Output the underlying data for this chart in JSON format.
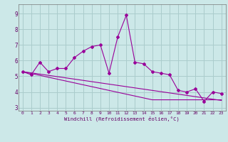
{
  "xlabel": "Windchill (Refroidissement éolien,°C)",
  "x_values": [
    0,
    1,
    2,
    3,
    4,
    5,
    6,
    7,
    8,
    9,
    10,
    11,
    12,
    13,
    14,
    15,
    16,
    17,
    18,
    19,
    20,
    21,
    22,
    23
  ],
  "y_main": [
    5.3,
    5.1,
    5.9,
    5.3,
    5.5,
    5.5,
    6.2,
    6.6,
    6.9,
    7.0,
    5.2,
    7.5,
    8.9,
    5.9,
    5.8,
    5.3,
    5.2,
    5.1,
    4.1,
    4.0,
    4.2,
    3.4,
    4.0,
    3.9
  ],
  "y_line1": [
    5.3,
    5.22,
    5.14,
    5.06,
    4.98,
    4.9,
    4.82,
    4.74,
    4.66,
    4.58,
    4.5,
    4.42,
    4.34,
    4.26,
    4.18,
    4.1,
    4.02,
    3.94,
    3.86,
    3.78,
    3.7,
    3.62,
    3.54,
    3.46
  ],
  "y_line2": [
    5.3,
    5.18,
    5.06,
    4.94,
    4.82,
    4.7,
    4.58,
    4.46,
    4.34,
    4.22,
    4.1,
    3.98,
    3.86,
    3.74,
    3.62,
    3.5,
    3.5,
    3.5,
    3.5,
    3.5,
    3.5,
    3.5,
    3.5,
    3.5
  ],
  "line_color": "#990099",
  "bg_color": "#cce8e8",
  "grid_color": "#aacccc",
  "ylim": [
    2.8,
    9.6
  ],
  "yticks": [
    3,
    4,
    5,
    6,
    7,
    8,
    9
  ],
  "xlim": [
    -0.5,
    23.5
  ]
}
